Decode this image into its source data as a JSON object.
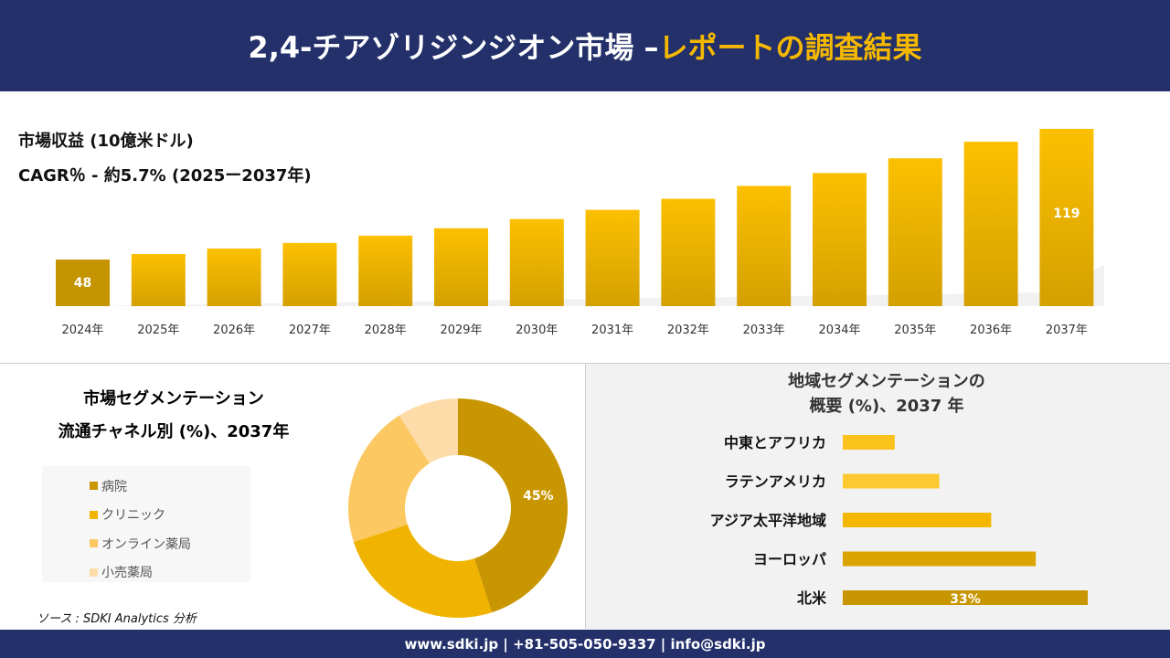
{
  "header": {
    "title_main": "2,4-チアゾリジンジオン市場 –",
    "title_highlight": "レポートの調査結果"
  },
  "revenue": {
    "title": "市場収益 (10億米ドル)",
    "cagr": "CAGR％ - 約5.7% (2025ー2037年)"
  },
  "chart_data": [
    {
      "type": "bar",
      "categories": [
        "2024年",
        "2025年",
        "2026年",
        "2027年",
        "2028年",
        "2029年",
        "2030年",
        "2031年",
        "2032年",
        "2033年",
        "2034年",
        "2035年",
        "2036年",
        "2037年"
      ],
      "values": [
        48,
        51,
        54,
        57,
        61,
        65,
        70,
        75,
        81,
        88,
        95,
        103,
        112,
        119
      ],
      "data_labels": {
        "0": "48",
        "13": "119"
      },
      "color": "#f5b800"
    },
    {
      "type": "pie",
      "title": "市場セグメンテーション 流通チャネル別 (%)、2037年",
      "categories": [
        "病院",
        "クリニック",
        "オンライン薬局",
        "小売薬局"
      ],
      "values": [
        45,
        25,
        21,
        9
      ],
      "colors": [
        "#c89600",
        "#f0b400",
        "#fcc862",
        "#fddcaa"
      ],
      "data_labels": {
        "0": "45%"
      }
    },
    {
      "type": "bar",
      "orientation": "horizontal",
      "title": "地域セグメンテーションの概要 (%)、2037 年",
      "categories": [
        "中東とアフリカ",
        "ラテンアメリカ",
        "アジア太平洋地域",
        "ヨーロッパ",
        "北米"
      ],
      "values": [
        7,
        13,
        20,
        26,
        33
      ],
      "colors": [
        "#fcc21c",
        "#fcc930",
        "#f5b800",
        "#dca400",
        "#c89600"
      ],
      "data_labels": {
        "4": "33%"
      }
    }
  ],
  "segment": {
    "title1": "市場セグメンテーション",
    "title2": "流通チャネル別 (%)、2037年"
  },
  "region": {
    "title1": "地域セグメンテーションの",
    "title2": "概要 (%)、2037 年"
  },
  "source": "ソース : SDKI Analytics 分析",
  "footer": "www.sdki.jp | +81-505-050-9337 | info@sdki.jp"
}
